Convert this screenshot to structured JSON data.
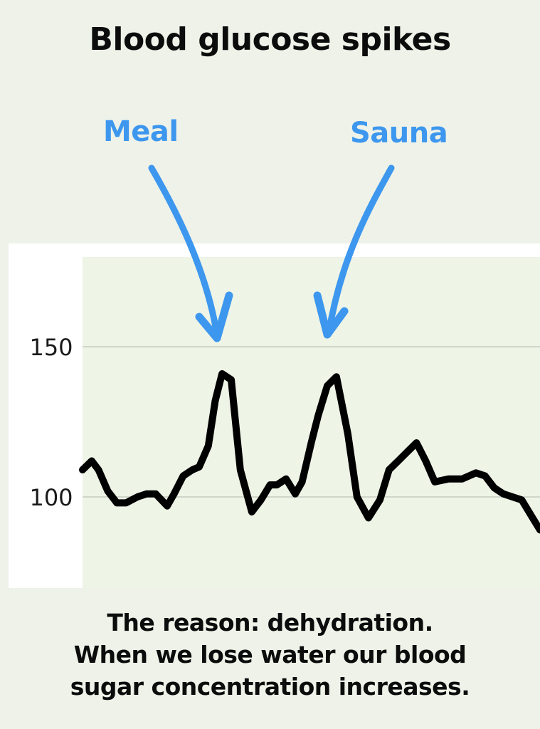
{
  "title": "Blood glucose spikes",
  "annotations": {
    "meal": "Meal",
    "sauna": "Sauna"
  },
  "caption": {
    "line1": "The reason: dehydration.",
    "line2": "When we lose water our blood",
    "line3": "sugar concentration increases."
  },
  "colors": {
    "background": "#eef2e8",
    "plot_area": "#eef4e6",
    "line": "#000000",
    "annotation": "#3d97ee"
  },
  "chart_data": {
    "type": "line",
    "title": "Blood glucose spikes",
    "xlabel": "",
    "ylabel": "",
    "ylim": [
      70,
      180
    ],
    "xlim": [
      0,
      1
    ],
    "yticks": [
      100,
      150
    ],
    "ytick_labels": [
      "100",
      "150"
    ],
    "grid": true,
    "series": [
      {
        "x": [
          0.0,
          0.02,
          0.035,
          0.055,
          0.075,
          0.095,
          0.12,
          0.14,
          0.16,
          0.185,
          0.2,
          0.22,
          0.24,
          0.255,
          0.275,
          0.29,
          0.305,
          0.325,
          0.345,
          0.37,
          0.39,
          0.41,
          0.425,
          0.445,
          0.465,
          0.48,
          0.5,
          0.515,
          0.535,
          0.555,
          0.58,
          0.6,
          0.625,
          0.65,
          0.67,
          0.69,
          0.71,
          0.73,
          0.75,
          0.77,
          0.8,
          0.83,
          0.86,
          0.88,
          0.9,
          0.92,
          0.94,
          0.96,
          0.98,
          1.0
        ],
        "values": [
          109,
          112,
          109,
          102,
          98,
          98,
          100,
          101,
          101,
          97,
          101,
          107,
          109,
          110,
          117,
          132,
          141,
          139,
          109,
          95,
          99,
          104,
          104,
          106,
          101,
          105,
          118,
          127,
          137,
          140,
          121,
          100,
          93,
          99,
          109,
          112,
          115,
          118,
          112,
          105,
          106,
          106,
          108,
          107,
          103,
          101,
          100,
          99,
          94,
          89
        ]
      }
    ],
    "annotations": [
      {
        "text": "Meal",
        "x": 0.295,
        "arrow": true
      },
      {
        "text": "Sauna",
        "x": 0.535,
        "arrow": true
      }
    ]
  }
}
